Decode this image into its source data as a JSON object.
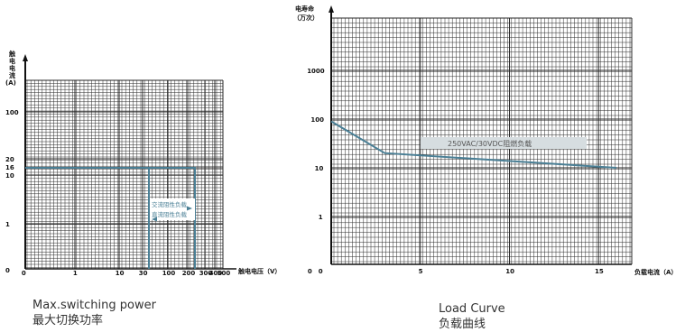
{
  "captions": {
    "left_en": "Max.switching power",
    "left_cn": "最大切换功率",
    "right_en": "Load Curve",
    "right_cn": "负载曲线"
  },
  "colors": {
    "grid": "#2a2a2a",
    "curve": "#4a7f95",
    "label_box": "#d6dde0"
  },
  "chart_data": [
    {
      "type": "line",
      "title": "",
      "y_label_lines": [
        "触",
        "电",
        "电",
        "流",
        "(A)"
      ],
      "xlabel": "触电电压（V）",
      "x_scale": "log",
      "y_scale": "log",
      "x_ticks": [
        "0",
        "1",
        "10",
        "30",
        "100",
        "200",
        "300",
        "400",
        "500"
      ],
      "y_ticks": [
        "100",
        "20",
        "16",
        "10",
        "1",
        "0"
      ],
      "legend": [
        "交流阻性负载",
        "直流阻性负载"
      ],
      "series": [
        {
          "name": "交流阻性负载",
          "points": [
            [
              0,
              16
            ],
            [
              250,
              16
            ],
            [
              250,
              0
            ]
          ]
        },
        {
          "name": "直流阻性负载",
          "points": [
            [
              0,
              16
            ],
            [
              30,
              16
            ],
            [
              30,
              0
            ]
          ]
        }
      ],
      "grid": true
    },
    {
      "type": "line",
      "title": "",
      "y_label_lines": [
        "电寿命",
        "（万次）"
      ],
      "xlabel": "负载电流（A）",
      "y_scale": "log",
      "xlim": [
        0,
        16
      ],
      "x_ticks": [
        "0",
        "5",
        "10",
        "15"
      ],
      "y_ticks": [
        "1000",
        "100",
        "10",
        "1",
        "0"
      ],
      "series": [
        {
          "name": "250VAC/30VDC阻燃负载",
          "points": [
            [
              0,
              90
            ],
            [
              3,
              20
            ],
            [
              16,
              10
            ]
          ]
        }
      ],
      "grid": true
    }
  ]
}
